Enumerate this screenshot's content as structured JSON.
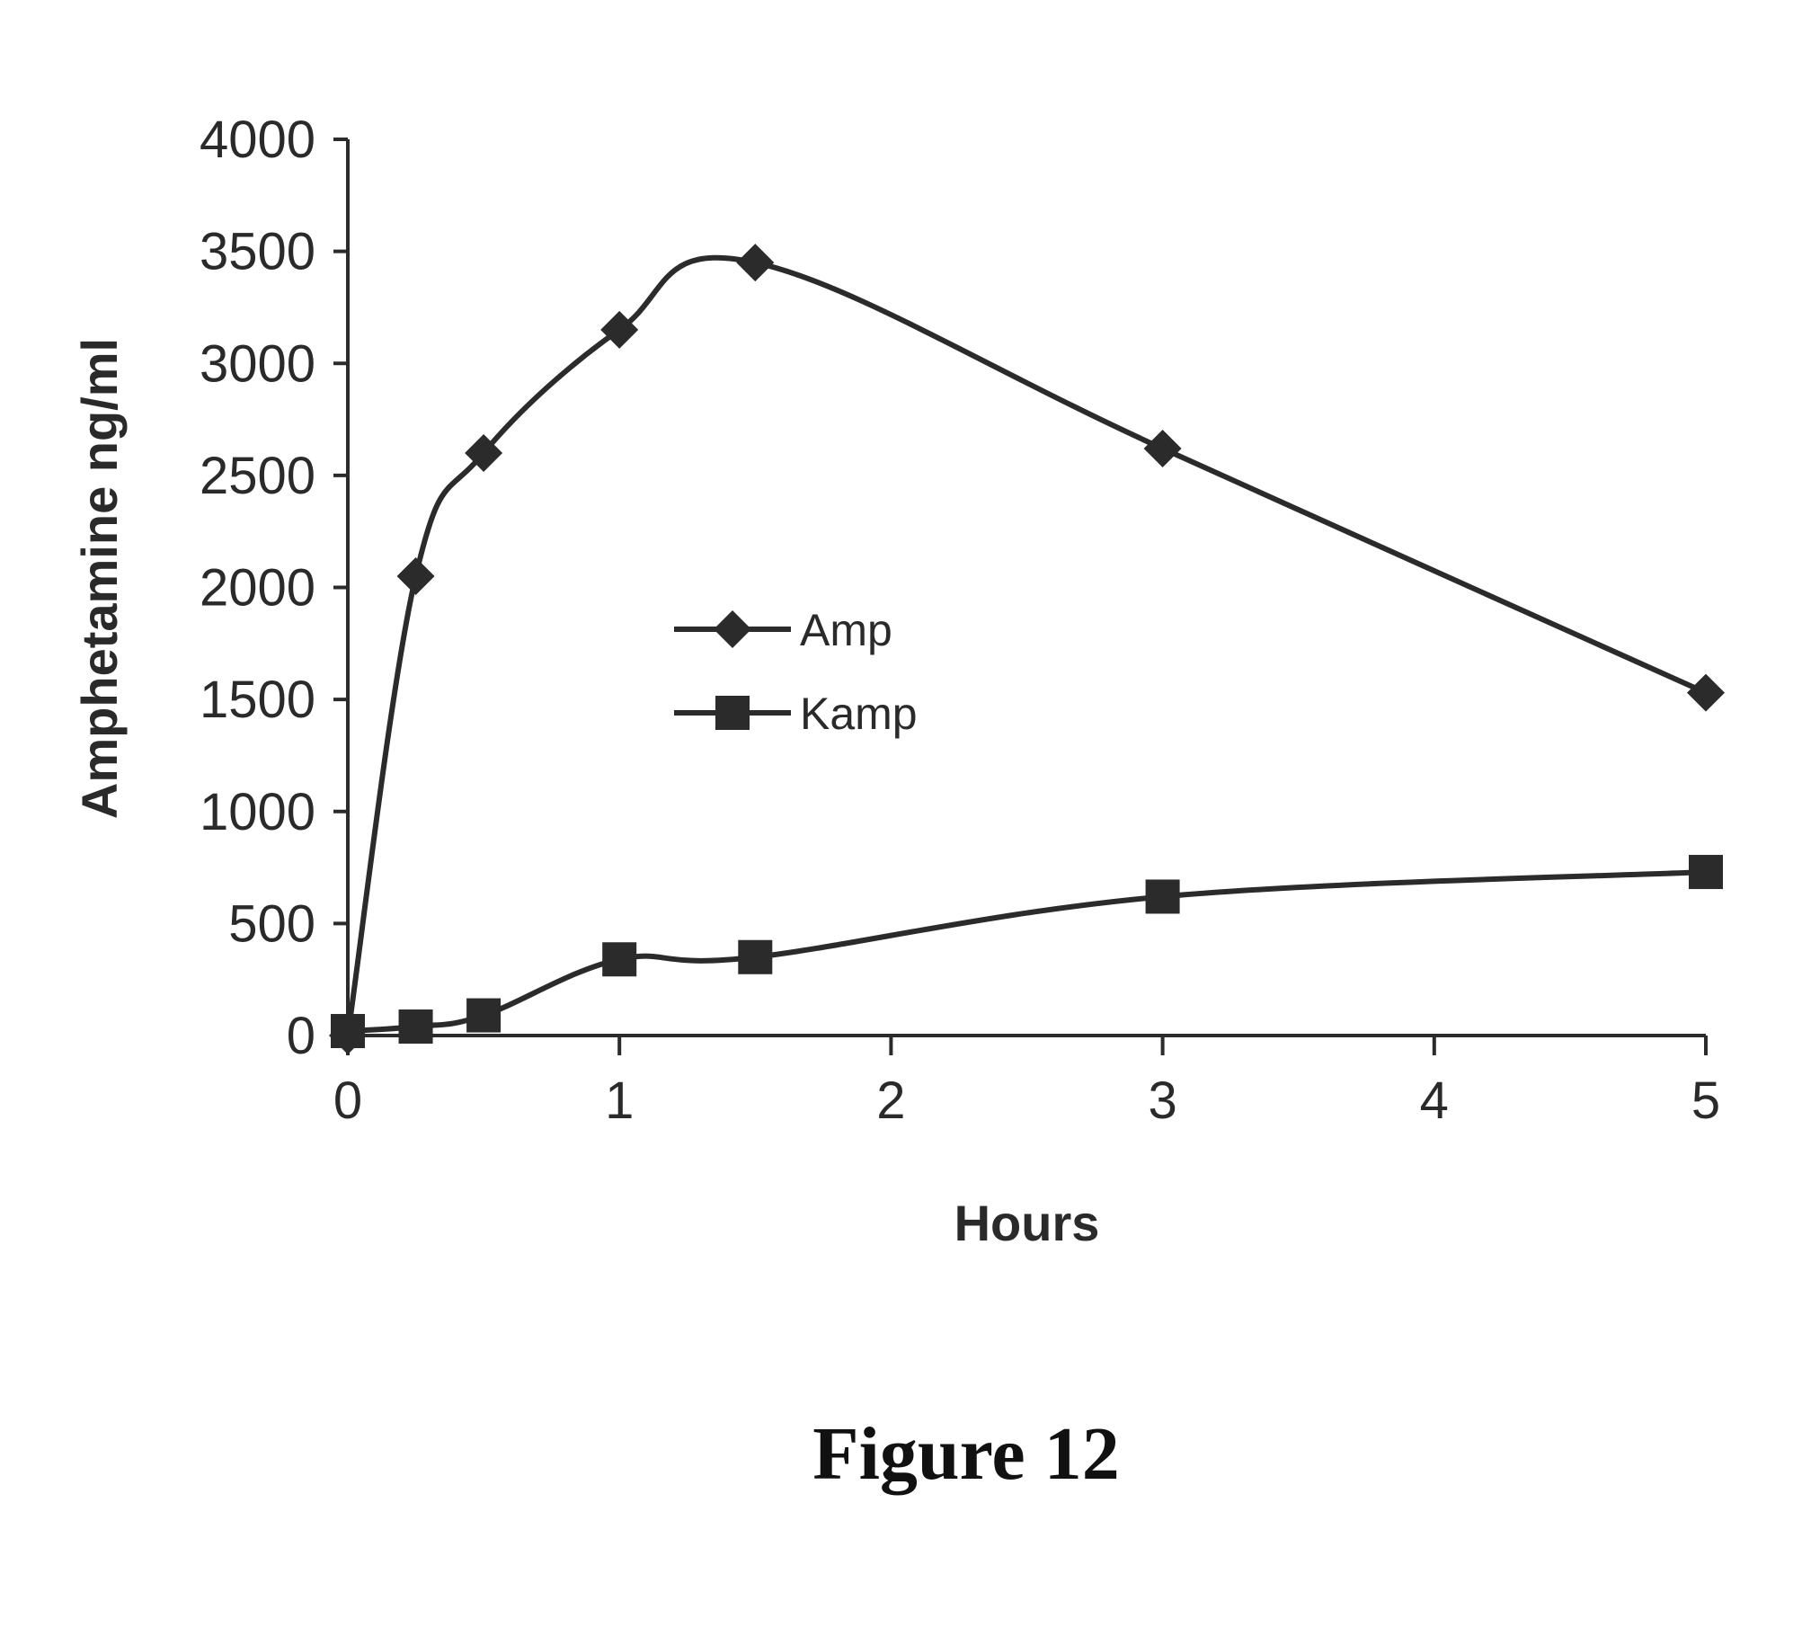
{
  "chart_data": {
    "type": "line",
    "xlabel": "Hours",
    "ylabel": "Amphetamine ng/ml",
    "xlim": [
      0,
      5
    ],
    "ylim": [
      0,
      4000
    ],
    "xticks": [
      0,
      1,
      2,
      3,
      4,
      5
    ],
    "yticks": [
      0,
      500,
      1000,
      1500,
      2000,
      2500,
      3000,
      3500,
      4000
    ],
    "grid": false,
    "legend_position": "center",
    "series": [
      {
        "name": "Amp",
        "marker": "diamond",
        "x": [
          0,
          0.25,
          0.5,
          1,
          1.5,
          3,
          5
        ],
        "y": [
          0,
          2050,
          2600,
          3150,
          3450,
          2620,
          1530
        ]
      },
      {
        "name": "Kamp",
        "marker": "square",
        "x": [
          0,
          0.25,
          0.5,
          1,
          1.5,
          3,
          5
        ],
        "y": [
          20,
          40,
          90,
          340,
          350,
          620,
          730
        ]
      }
    ]
  },
  "caption": "Figure 12",
  "colors": {
    "line": "#2b2b2b",
    "text": "#2a2a2a"
  }
}
